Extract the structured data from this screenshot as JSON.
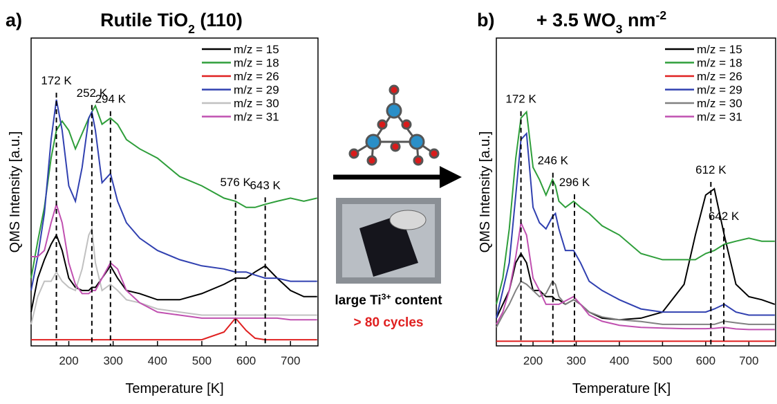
{
  "chart_data": [
    {
      "type": "line",
      "label": "a)",
      "title": [
        {
          "text": "Rutile TiO"
        },
        {
          "text": "2",
          "sub": true
        },
        {
          "text": " (110)"
        }
      ],
      "x_label": "Temperature [K]",
      "y_label": "QMS Intensity [a.u.]",
      "xlim": [
        115,
        762
      ],
      "ylim": [
        0,
        100
      ],
      "xticks": [
        200,
        300,
        400,
        500,
        600,
        700
      ],
      "x": [
        115,
        130,
        145,
        160,
        172,
        185,
        200,
        215,
        230,
        245,
        252,
        260,
        275,
        294,
        310,
        330,
        360,
        400,
        450,
        500,
        550,
        576,
        600,
        620,
        643,
        670,
        700,
        730,
        760
      ],
      "series": [
        {
          "name": "m/z = 15",
          "color": "#000000",
          "values": [
            11,
            22,
            28,
            33,
            36,
            31,
            22,
            19,
            18,
            18,
            19,
            19,
            22,
            26,
            22,
            18,
            17,
            15,
            15,
            17,
            20,
            22,
            22,
            24,
            26,
            22,
            18,
            16,
            16
          ]
        },
        {
          "name": "m/z = 18",
          "color": "#2e9e3a",
          "values": [
            22,
            34,
            45,
            61,
            70,
            73,
            70,
            64,
            69,
            74,
            76,
            78,
            72,
            74,
            72,
            67,
            64,
            61,
            55,
            52,
            48,
            47,
            45,
            45,
            46,
            47,
            48,
            47,
            48
          ]
        },
        {
          "name": "m/z = 26",
          "color": "#e02020",
          "values": [
            2,
            2,
            2,
            2,
            2,
            2,
            2,
            2,
            2,
            2,
            2,
            2,
            2,
            2,
            2,
            2,
            2,
            2,
            2,
            2,
            4.5,
            9,
            5,
            2.5,
            2,
            2,
            2,
            2,
            2
          ]
        },
        {
          "name": "m/z = 29",
          "color": "#3040b0",
          "values": [
            18,
            29,
            43,
            67,
            80,
            70,
            52,
            47,
            58,
            74,
            76,
            70,
            53,
            56,
            47,
            40,
            35,
            31,
            28,
            26,
            25,
            24,
            24,
            23,
            22,
            22,
            21,
            21,
            21
          ]
        },
        {
          "name": "m/z = 30",
          "color": "#c0c0c0",
          "values": [
            7,
            16,
            21,
            21,
            24,
            21,
            19,
            18,
            25,
            36,
            38,
            27,
            18,
            20,
            18,
            15,
            14,
            12,
            11,
            10,
            10,
            10,
            10,
            10,
            10,
            10,
            10,
            10,
            10
          ]
        },
        {
          "name": "m/z = 31",
          "color": "#c050b0",
          "values": [
            29,
            29,
            31,
            40,
            46,
            40,
            27,
            20,
            17,
            17,
            18,
            18,
            22,
            27,
            25,
            18,
            14,
            11,
            10,
            9,
            9,
            9,
            9,
            9,
            9,
            9,
            8.5,
            8.5,
            8.5
          ]
        }
      ],
      "annotations": [
        {
          "text": "172 K",
          "x": 172
        },
        {
          "text": "252 K",
          "x": 252
        },
        {
          "text": "294 K",
          "x": 294
        },
        {
          "text": "576 K",
          "x": 576
        },
        {
          "text": "643 K",
          "x": 643
        }
      ]
    },
    {
      "type": "line",
      "label": "b)",
      "title": [
        {
          "text": "+ 3.5 WO"
        },
        {
          "text": "3",
          "sub": true
        },
        {
          "text": " nm"
        },
        {
          "text": "-2",
          "sup": true
        }
      ],
      "x_label": "Temperature [K]",
      "y_label": "QMS Intensity [a.u.]",
      "xlim": [
        115,
        762
      ],
      "ylim": [
        0,
        100
      ],
      "xticks": [
        200,
        300,
        400,
        500,
        600,
        700
      ],
      "x": [
        115,
        130,
        145,
        160,
        172,
        185,
        200,
        215,
        230,
        245,
        252,
        260,
        275,
        294,
        310,
        330,
        360,
        400,
        450,
        500,
        550,
        576,
        600,
        620,
        643,
        670,
        700,
        730,
        760
      ],
      "series": [
        {
          "name": "m/z = 15",
          "color": "#000000",
          "values": [
            9,
            13.5,
            18,
            27,
            30,
            27,
            18,
            18,
            16,
            16,
            15,
            15,
            13.5,
            15,
            13.5,
            11,
            9,
            8.5,
            9,
            11,
            20,
            36,
            49,
            51,
            36,
            20,
            16,
            15,
            13.5
          ]
        },
        {
          "name": "m/z = 18",
          "color": "#2e9e3a",
          "values": [
            13.5,
            22,
            38,
            61,
            74,
            76,
            58,
            54,
            49,
            54,
            52,
            47,
            45,
            47,
            45,
            43,
            39,
            36,
            30,
            28,
            28,
            28,
            30,
            31,
            33,
            34,
            35,
            34,
            34
          ]
        },
        {
          "name": "m/z = 26",
          "color": "#e02020",
          "values": [
            1.5,
            1.5,
            1.5,
            1.5,
            1.5,
            1.5,
            1.5,
            1.5,
            1.5,
            1.5,
            1.5,
            1.5,
            1.5,
            1.5,
            1.5,
            1.5,
            1.5,
            1.5,
            1.5,
            1.5,
            1.5,
            1.5,
            1.5,
            1.5,
            1.5,
            1.5,
            1.5,
            1.5,
            1.5
          ]
        },
        {
          "name": "m/z = 29",
          "color": "#3040b0",
          "values": [
            9,
            18,
            27,
            49,
            67,
            69,
            45,
            40,
            38,
            42,
            43,
            38,
            31,
            31,
            27,
            21,
            18,
            15,
            12,
            11,
            11,
            11,
            11,
            12,
            13.5,
            11,
            10,
            10,
            10
          ]
        },
        {
          "name": "m/z = 30",
          "color": "#808080",
          "values": [
            6,
            10,
            13.5,
            18,
            21,
            20,
            18,
            16,
            17,
            21,
            20,
            16,
            13.5,
            15,
            13.5,
            11,
            9.4,
            8.5,
            7.9,
            7,
            7,
            7,
            7,
            7,
            8,
            7.5,
            7,
            7,
            7
          ]
        },
        {
          "name": "m/z = 31",
          "color": "#c050b0",
          "values": [
            7,
            11,
            18,
            29,
            40,
            36,
            22,
            18,
            13.5,
            13.5,
            13.5,
            13.5,
            14.6,
            16,
            13.5,
            10,
            8,
            6.7,
            6,
            5.8,
            5.6,
            5.6,
            5.6,
            5.7,
            6,
            5.5,
            5.3,
            5.3,
            5.3
          ]
        }
      ],
      "annotations": [
        {
          "text": "172 K",
          "x": 172
        },
        {
          "text": "246 K",
          "x": 246
        },
        {
          "text": "296 K",
          "x": 296
        },
        {
          "text": "612 K",
          "x": 612
        },
        {
          "text": "642 K",
          "x": 642
        }
      ]
    }
  ],
  "center": {
    "caption": [
      {
        "text": "large Ti"
      },
      {
        "text": "3+",
        "sup": true
      },
      {
        "text": " content"
      }
    ],
    "note": "> 80 cycles"
  }
}
